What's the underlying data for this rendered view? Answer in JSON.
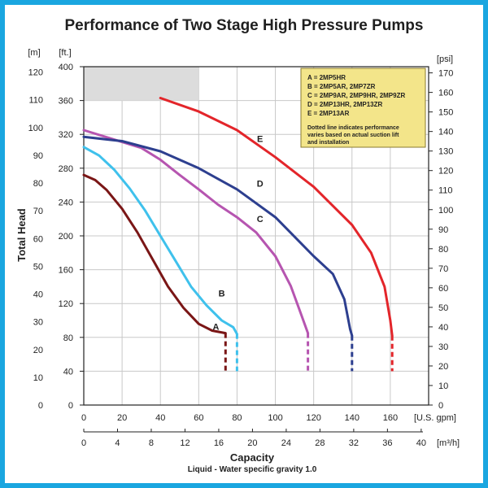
{
  "chart_data": {
    "type": "line",
    "title": "Performance of Two Stage High Pressure Pumps",
    "xlabel": "Capacity",
    "ylabel": "Total Head",
    "subtitle": "Liquid - Water specific gravity 1.0",
    "x_unit_primary": "[U.S. gpm]",
    "x_unit_secondary": "[m³/h]",
    "y_unit_left_m": "[m]",
    "y_unit_left_ft": "[ft.]",
    "y_unit_right": "[psi]",
    "xlim": [
      0,
      180
    ],
    "ylim": [
      0,
      400
    ],
    "x_ticks": [
      "0",
      "20",
      "40",
      "60",
      "80",
      "100",
      "120",
      "140",
      "160"
    ],
    "x2_ticks": [
      "0",
      "4",
      "8",
      "12",
      "16",
      "20",
      "24",
      "28",
      "32",
      "36",
      "40"
    ],
    "y_ticks_ft": [
      "0",
      "40",
      "80",
      "120",
      "160",
      "200",
      "240",
      "280",
      "320",
      "360",
      "400"
    ],
    "y_ticks_m": [
      "0",
      "10",
      "20",
      "30",
      "40",
      "50",
      "60",
      "70",
      "80",
      "90",
      "100",
      "110",
      "120"
    ],
    "y_ticks_psi": [
      "0",
      "10",
      "20",
      "30",
      "40",
      "50",
      "60",
      "70",
      "80",
      "90",
      "100",
      "110",
      "120",
      "130",
      "140",
      "150",
      "160",
      "170"
    ],
    "grid": true,
    "shaded_region": {
      "x": [
        0,
        60
      ],
      "y": [
        360,
        400
      ]
    },
    "legend": {
      "placement": "top-right",
      "lines": [
        "A = 2MP5HR",
        "B = 2MP5AR, 2MP7ZR",
        "C = 2MP9AR, 2MP9HR, 2MP9ZR",
        "D = 2MP13HR, 2MP13ZR",
        "E = 2MP13AR"
      ],
      "note": [
        "Dotted line indicates performance",
        "varies based on actual suction lift",
        "and installation"
      ],
      "background": "#f3e58a"
    },
    "series": [
      {
        "name": "A",
        "color": "#7a1616",
        "solid": [
          [
            0,
            272
          ],
          [
            6,
            266
          ],
          [
            12,
            254
          ],
          [
            20,
            232
          ],
          [
            28,
            204
          ],
          [
            36,
            172
          ],
          [
            44,
            140
          ],
          [
            52,
            115
          ],
          [
            60,
            96
          ],
          [
            67,
            88
          ],
          [
            74,
            85
          ]
        ],
        "dashed": [
          [
            74,
            85
          ],
          [
            74,
            40
          ]
        ]
      },
      {
        "name": "B",
        "color": "#3fc1ec",
        "solid": [
          [
            0,
            305
          ],
          [
            8,
            295
          ],
          [
            16,
            278
          ],
          [
            24,
            256
          ],
          [
            32,
            230
          ],
          [
            40,
            200
          ],
          [
            48,
            170
          ],
          [
            56,
            140
          ],
          [
            64,
            118
          ],
          [
            72,
            100
          ],
          [
            78,
            92
          ],
          [
            80,
            84
          ]
        ],
        "dashed": [
          [
            80,
            84
          ],
          [
            80,
            40
          ]
        ]
      },
      {
        "name": "C",
        "color": "#b655b0",
        "solid": [
          [
            0,
            325
          ],
          [
            10,
            318
          ],
          [
            20,
            311
          ],
          [
            30,
            304
          ],
          [
            40,
            290
          ],
          [
            50,
            272
          ],
          [
            60,
            255
          ],
          [
            70,
            237
          ],
          [
            80,
            222
          ],
          [
            90,
            204
          ],
          [
            100,
            176
          ],
          [
            108,
            141
          ],
          [
            113,
            110
          ],
          [
            117,
            85
          ]
        ],
        "dashed": [
          [
            117,
            85
          ],
          [
            117,
            40
          ]
        ]
      },
      {
        "name": "D",
        "color": "#2d3f8f",
        "solid": [
          [
            0,
            317
          ],
          [
            20,
            312
          ],
          [
            40,
            300
          ],
          [
            60,
            280
          ],
          [
            80,
            255
          ],
          [
            100,
            222
          ],
          [
            120,
            176
          ],
          [
            130,
            155
          ],
          [
            136,
            125
          ],
          [
            139,
            90
          ],
          [
            140,
            82
          ]
        ],
        "dashed": [
          [
            140,
            82
          ],
          [
            140,
            40
          ]
        ]
      },
      {
        "name": "E",
        "color": "#e3252a",
        "solid": [
          [
            40,
            363
          ],
          [
            60,
            347
          ],
          [
            80,
            325
          ],
          [
            100,
            293
          ],
          [
            120,
            258
          ],
          [
            140,
            213
          ],
          [
            150,
            180
          ],
          [
            157,
            140
          ],
          [
            160,
            100
          ],
          [
            161,
            82
          ]
        ],
        "dashed": [
          [
            161,
            82
          ],
          [
            161,
            40
          ]
        ]
      }
    ],
    "curve_labels": [
      {
        "text": "A",
        "x": 69,
        "y": 93
      },
      {
        "text": "B",
        "x": 72,
        "y": 132
      },
      {
        "text": "C",
        "x": 92,
        "y": 220
      },
      {
        "text": "D",
        "x": 92,
        "y": 262
      },
      {
        "text": "E",
        "x": 92,
        "y": 315
      }
    ]
  },
  "colors": {
    "frame": "#1aa6e0",
    "grid": "#c8c8c8",
    "shaded": "#dcdcdc"
  }
}
